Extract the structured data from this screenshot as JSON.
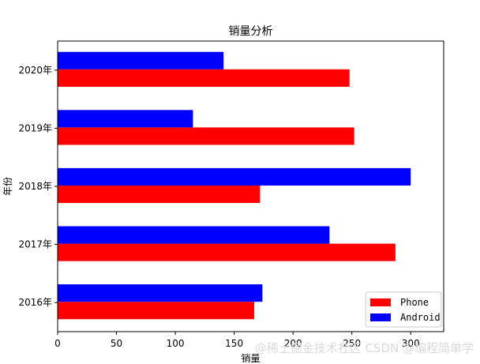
{
  "chart_data": {
    "type": "bar",
    "orientation": "horizontal",
    "title": "销量分析",
    "xlabel": "销量",
    "ylabel": "年份",
    "categories": [
      "2016年",
      "2017年",
      "2018年",
      "2019年",
      "2020年"
    ],
    "xlim": [
      0,
      328
    ],
    "xticks": [
      0,
      50,
      100,
      150,
      200,
      250,
      300
    ],
    "series": [
      {
        "name": "Phone",
        "color": "#ff0000",
        "values": [
          167,
          287,
          172,
          252,
          248
        ]
      },
      {
        "name": "Android",
        "color": "#0000ff",
        "values": [
          174,
          231,
          300,
          115,
          141
        ]
      }
    ],
    "legend": "lower-right",
    "grid": false
  },
  "watermark": "@稀土掘金技术社区 CSDN @编程简单学"
}
